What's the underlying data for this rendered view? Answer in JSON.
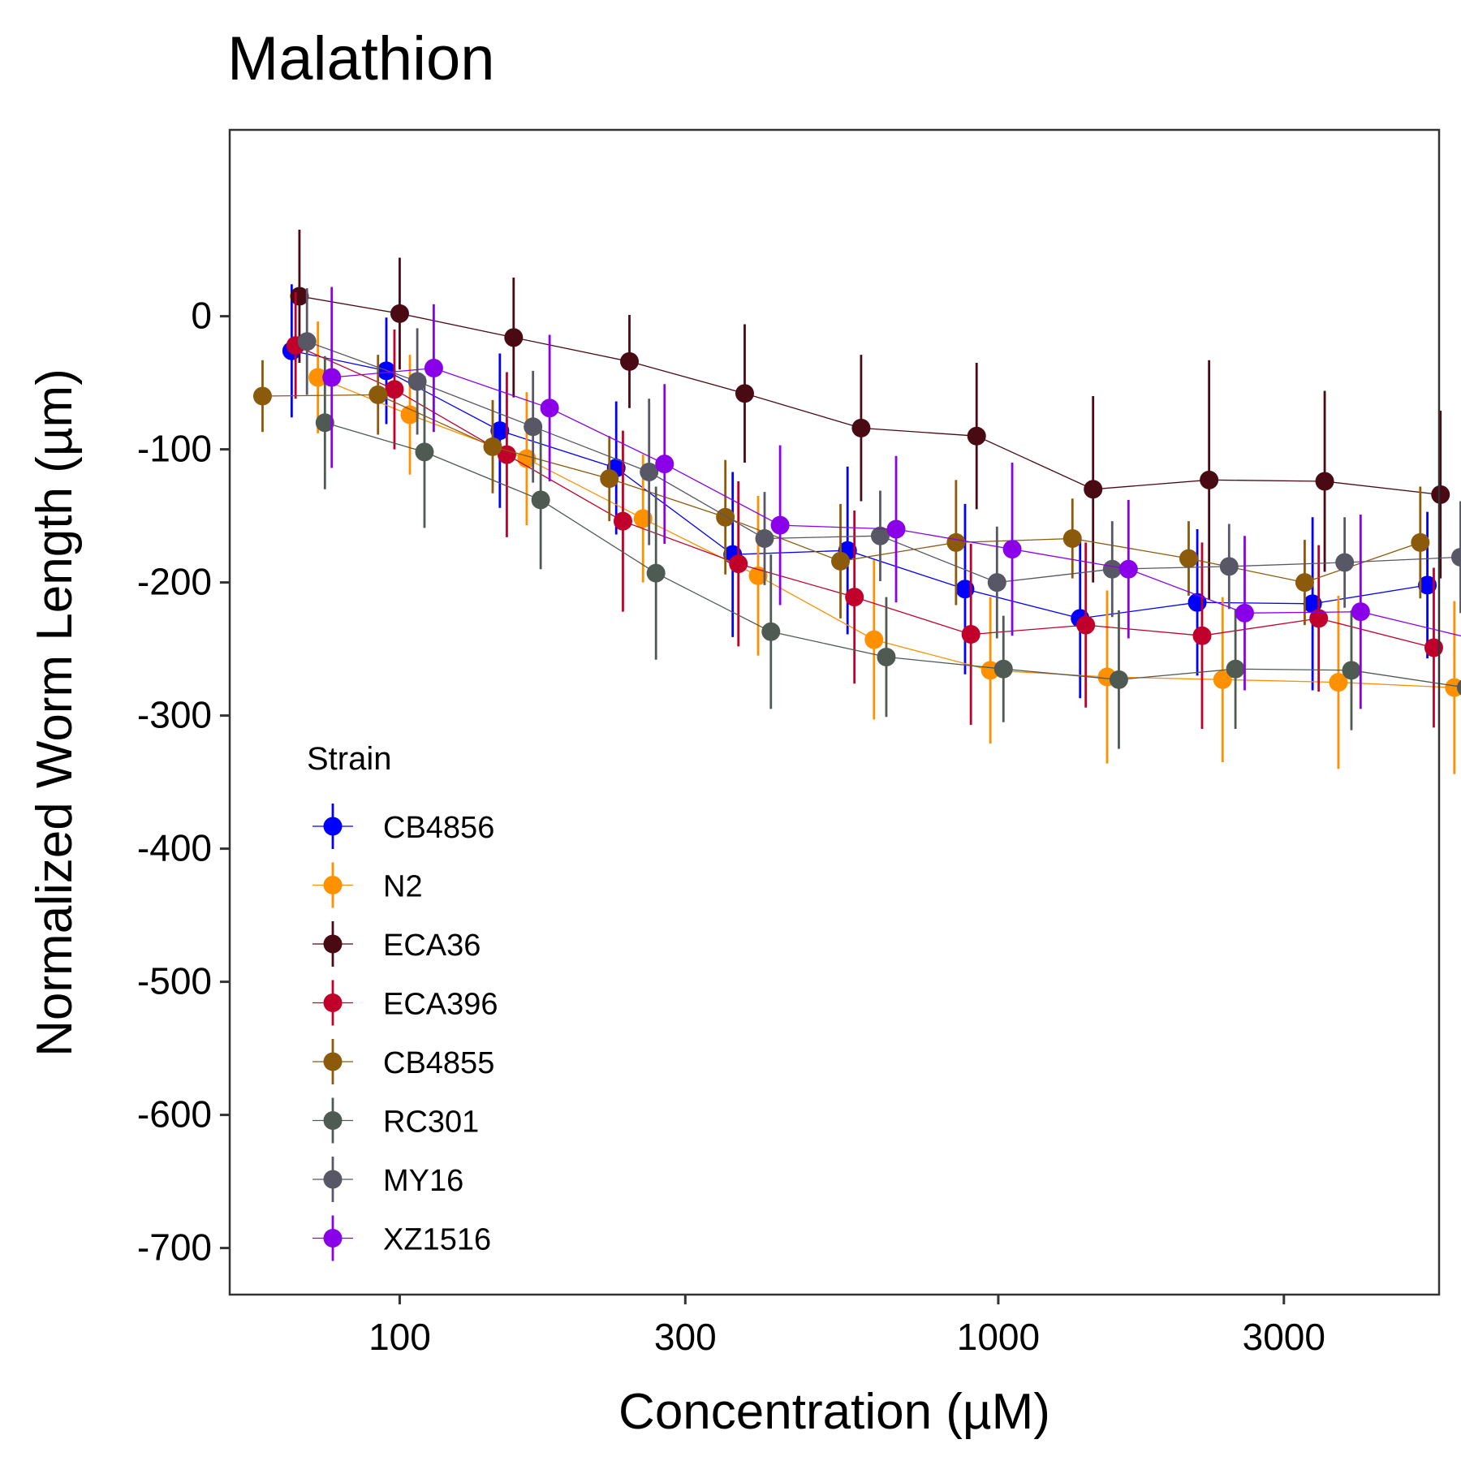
{
  "chart_data": {
    "type": "scatter",
    "title": "Malathion",
    "xlabel": "Concentration (µM)",
    "ylabel": "Normalized Worm Length (µm)",
    "x_scale": "log",
    "xlim": [
      52,
      5450
    ],
    "ylim": [
      -735,
      140
    ],
    "x_ticks": [
      100,
      300,
      1000,
      3000
    ],
    "x_tick_labels": [
      "100",
      "300",
      "1000",
      "3000"
    ],
    "y_ticks": [
      0,
      -100,
      -200,
      -300,
      -400,
      -500,
      -600,
      -700
    ],
    "y_tick_labels": [
      "0",
      "-100",
      "-200",
      "-300",
      "-400",
      "-500",
      "-600",
      "-700"
    ],
    "legend_title": "Strain",
    "legend_position": "bottom-left inside",
    "grid": false,
    "series": [
      {
        "name": "CB4856",
        "color": "#0000ff",
        "x": [
          66,
          95,
          147,
          230,
          360,
          560,
          880,
          1370,
          2150,
          3350,
          5210
        ],
        "y": [
          -26,
          -41,
          -86,
          -114,
          -179,
          -176,
          -205,
          -227,
          -215,
          -216,
          -202
        ],
        "err": [
          50,
          40,
          58,
          50,
          62,
          63,
          64,
          60,
          55,
          65,
          55
        ]
      },
      {
        "name": "N2",
        "color": "#ff9000",
        "x": [
          73,
          104,
          163,
          255,
          397,
          620,
          970,
          1520,
          2370,
          3700,
          5780
        ],
        "y": [
          -46,
          -74,
          -107,
          -152,
          -195,
          -243,
          -266,
          -271,
          -273,
          -275,
          -279
        ],
        "err": [
          42,
          45,
          50,
          48,
          60,
          60,
          55,
          65,
          62,
          65,
          65
        ]
      },
      {
        "name": "ECA36",
        "color": "#4a0a14",
        "x": [
          68,
          100,
          155,
          242,
          377,
          590,
          920,
          1440,
          2250,
          3510,
          5480
        ],
        "y": [
          15,
          2,
          -16,
          -34,
          -58,
          -84,
          -90,
          -130,
          -123,
          -124,
          -134
        ],
        "err": [
          50,
          42,
          45,
          35,
          52,
          55,
          55,
          70,
          90,
          68,
          63
        ]
      },
      {
        "name": "ECA396",
        "color": "#c0002a",
        "x": [
          67,
          98,
          151,
          236,
          368,
          575,
          900,
          1400,
          2190,
          3430,
          5340
        ],
        "y": [
          -22,
          -55,
          -104,
          -154,
          -186,
          -211,
          -239,
          -232,
          -240,
          -227,
          -249
        ],
        "err": [
          40,
          45,
          62,
          68,
          62,
          65,
          68,
          62,
          70,
          55,
          60
        ]
      },
      {
        "name": "CB4855",
        "color": "#8b5a0a",
        "x": [
          59,
          92,
          143,
          224,
          350,
          545,
          850,
          1330,
          2080,
          3250,
          5070
        ],
        "y": [
          -60,
          -59,
          -98,
          -122,
          -151,
          -184,
          -170,
          -167,
          -182,
          -200,
          -170
        ],
        "err": [
          27,
          30,
          35,
          32,
          43,
          43,
          47,
          30,
          28,
          32,
          42
        ]
      },
      {
        "name": "RC301",
        "color": "#4f5b52",
        "x": [
          75,
          110,
          172,
          268,
          417,
          650,
          1020,
          1590,
          2490,
          3890,
          6050
        ],
        "y": [
          -80,
          -102,
          -138,
          -193,
          -237,
          -256,
          -265,
          -273,
          -265,
          -266,
          -279
        ],
        "err": [
          50,
          57,
          52,
          65,
          58,
          45,
          40,
          52,
          45,
          45,
          50
        ]
      },
      {
        "name": "MY16",
        "color": "#575766",
        "x": [
          70,
          107,
          167,
          261,
          407,
          635,
          995,
          1550,
          2430,
          3790,
          5920
        ],
        "y": [
          -19,
          -49,
          -83,
          -117,
          -167,
          -165,
          -200,
          -190,
          -188,
          -185,
          -181
        ],
        "err": [
          40,
          40,
          42,
          55,
          35,
          34,
          42,
          36,
          32,
          34,
          42
        ]
      },
      {
        "name": "XZ1516",
        "color": "#8a00e8",
        "x": [
          77,
          114,
          178,
          277,
          432,
          675,
          1055,
          1650,
          2580,
          4030,
          6300
        ],
        "y": [
          -46,
          -39,
          -69,
          -111,
          -157,
          -160,
          -175,
          -190,
          -223,
          -222,
          -243
        ],
        "err": [
          68,
          48,
          55,
          60,
          60,
          55,
          65,
          52,
          58,
          73,
          77
        ]
      }
    ]
  }
}
